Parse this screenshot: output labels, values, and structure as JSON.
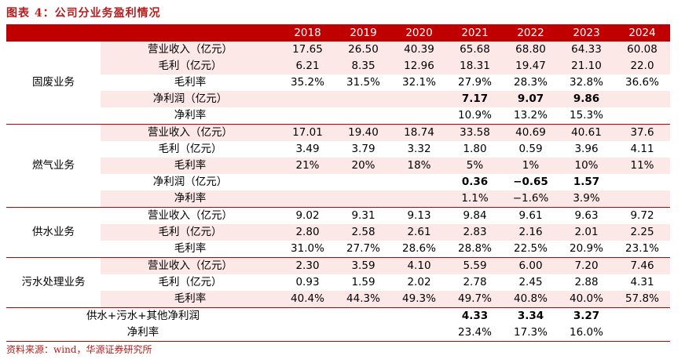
{
  "title": "图表 4：公司分业务盈利情况",
  "source": "资料来源：wind，华源证券研究所",
  "colors": {
    "header_bg": "#c00000",
    "shade": "#fde8e8",
    "title": "#b71c1c"
  },
  "years": [
    "2018",
    "2019",
    "2020",
    "2021",
    "2022",
    "2023",
    "2024"
  ],
  "segments": [
    {
      "name": "固废业务",
      "rows": [
        {
          "label": "营业收入（亿元）",
          "shade": true,
          "values": [
            "17.65",
            "26.50",
            "40.39",
            "65.68",
            "68.80",
            "64.33",
            "60.08"
          ],
          "bold": []
        },
        {
          "label": "毛利（亿元）",
          "shade": true,
          "values": [
            "6.21",
            "8.35",
            "12.96",
            "18.31",
            "19.47",
            "21.10",
            "22.0"
          ],
          "bold": []
        },
        {
          "label": "毛利率",
          "shade": false,
          "values": [
            "35.2%",
            "31.5%",
            "32.1%",
            "27.9%",
            "28.3%",
            "32.8%",
            "36.6%"
          ],
          "bold": []
        },
        {
          "label": "净利润（亿元）",
          "shade": true,
          "values": [
            "",
            "",
            "",
            "7.17",
            "9.07",
            "9.86",
            ""
          ],
          "bold": [
            3,
            4,
            5
          ]
        },
        {
          "label": "净利率",
          "shade": false,
          "values": [
            "",
            "",
            "",
            "10.9%",
            "13.2%",
            "15.3%",
            ""
          ],
          "bold": []
        }
      ]
    },
    {
      "name": "燃气业务",
      "rows": [
        {
          "label": "营业收入（亿元）",
          "shade": true,
          "values": [
            "17.01",
            "19.40",
            "18.74",
            "33.58",
            "40.69",
            "40.61",
            "37.6"
          ],
          "bold": []
        },
        {
          "label": "毛利（亿元）",
          "shade": false,
          "values": [
            "3.49",
            "3.79",
            "3.32",
            "1.80",
            "0.59",
            "3.96",
            "4.11"
          ],
          "bold": []
        },
        {
          "label": "毛利率",
          "shade": true,
          "values": [
            "21%",
            "20%",
            "18%",
            "5%",
            "1%",
            "10%",
            "11%"
          ],
          "bold": []
        },
        {
          "label": "净利润（亿元）",
          "shade": false,
          "values": [
            "",
            "",
            "",
            "0.36",
            "−0.65",
            "1.57",
            ""
          ],
          "bold": [
            3,
            4,
            5
          ]
        },
        {
          "label": "净利率",
          "shade": true,
          "values": [
            "",
            "",
            "",
            "1.1%",
            "−1.6%",
            "3.9%",
            ""
          ],
          "bold": []
        }
      ]
    },
    {
      "name": "供水业务",
      "rows": [
        {
          "label": "营业收入（亿元）",
          "shade": false,
          "values": [
            "9.02",
            "9.31",
            "9.13",
            "9.84",
            "9.61",
            "9.63",
            "9.72"
          ],
          "bold": []
        },
        {
          "label": "毛利（亿元）",
          "shade": true,
          "values": [
            "2.80",
            "2.58",
            "2.61",
            "2.83",
            "2.16",
            "2.01",
            "2.25"
          ],
          "bold": []
        },
        {
          "label": "毛利率",
          "shade": false,
          "values": [
            "31.0%",
            "27.7%",
            "28.6%",
            "28.8%",
            "22.5%",
            "20.9%",
            "23.1%"
          ],
          "bold": []
        }
      ]
    },
    {
      "name": "污水处理业务",
      "rows": [
        {
          "label": "营业收入（亿元）",
          "shade": true,
          "values": [
            "2.30",
            "3.59",
            "4.10",
            "5.59",
            "6.00",
            "7.20",
            "7.46"
          ],
          "bold": []
        },
        {
          "label": "毛利（亿元）",
          "shade": false,
          "values": [
            "0.93",
            "1.59",
            "2.02",
            "2.78",
            "2.45",
            "2.88",
            "4.31"
          ],
          "bold": []
        },
        {
          "label": "毛利率",
          "shade": true,
          "values": [
            "40.4%",
            "44.3%",
            "49.3%",
            "49.7%",
            "40.8%",
            "40.0%",
            "57.8%"
          ],
          "bold": []
        }
      ]
    }
  ],
  "combined": [
    {
      "label": "供水+污水+其他净利润",
      "shade": false,
      "values": [
        "",
        "",
        "",
        "4.33",
        "3.34",
        "3.27",
        ""
      ],
      "bold": [
        3,
        4,
        5
      ]
    },
    {
      "label": "净利率",
      "shade": false,
      "values": [
        "",
        "",
        "",
        "23.4%",
        "17.3%",
        "16.0%",
        ""
      ],
      "bold": []
    }
  ]
}
